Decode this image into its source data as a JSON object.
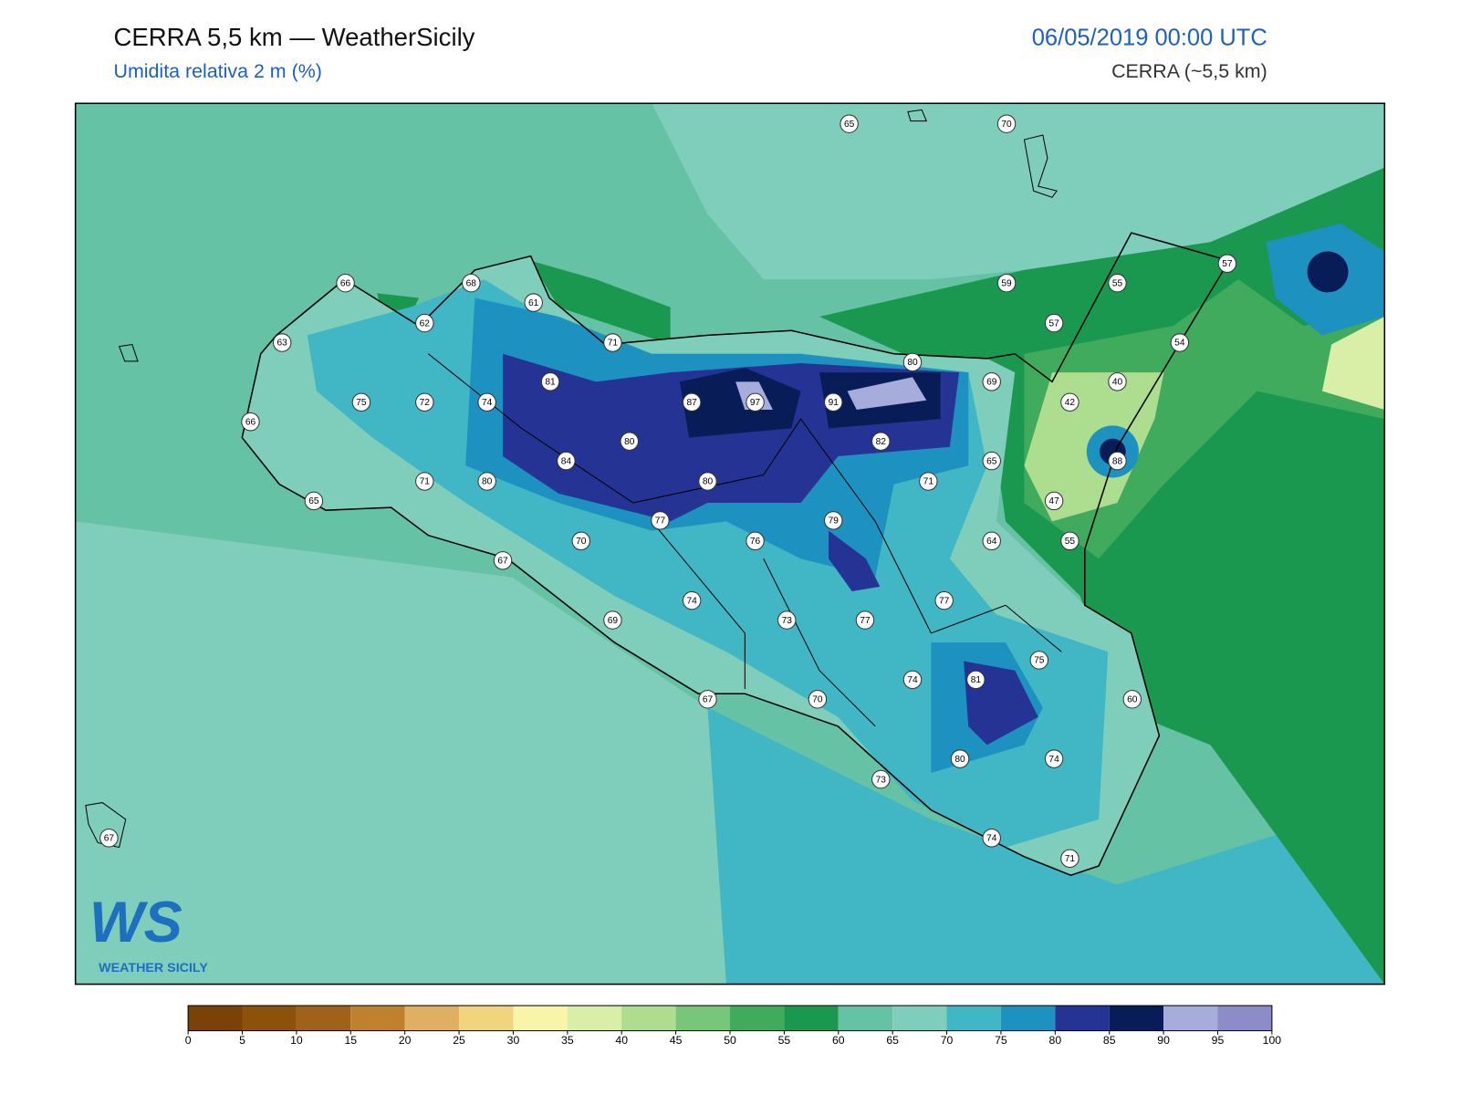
{
  "header": {
    "title": "CERRA 5,5 km — WeatherSicily",
    "subtitle": "Umidita relativa 2 m (%)",
    "datetime": "06/05/2019 00:00 UTC",
    "model": "CERRA (~5,5 km)"
  },
  "stations": [
    66,
    68,
    61,
    62,
    63,
    71,
    65,
    70,
    59,
    55,
    57,
    57,
    54,
    80,
    69,
    40,
    42,
    81,
    75,
    72,
    74,
    87,
    97,
    91,
    66,
    80,
    82,
    84,
    88,
    65,
    71,
    80,
    80,
    71,
    65,
    47,
    77,
    79,
    70,
    76,
    64,
    55,
    67,
    74,
    77,
    69,
    73,
    77,
    75,
    74,
    81,
    60,
    67,
    70,
    80,
    74,
    73,
    67,
    74,
    71
  ],
  "colorbar": {
    "colors": [
      "#7a4206",
      "#8c510a",
      "#a0611a",
      "#bf812d",
      "#dfb063",
      "#f0d47e",
      "#f8f5a8",
      "#d9efa8",
      "#addd8e",
      "#78c679",
      "#41ab5d",
      "#1a9850",
      "#66c2a4",
      "#7fcdbb",
      "#41b6c4",
      "#1d91c0",
      "#253494",
      "#081d58",
      "#a6addb",
      "#8c8cc8"
    ],
    "ticks": [
      0,
      5,
      10,
      15,
      20,
      25,
      30,
      35,
      40,
      45,
      50,
      55,
      60,
      65,
      70,
      75,
      80,
      85,
      90,
      95,
      100
    ]
  },
  "logo": {
    "mark": "WS",
    "text": "WEATHER SICILY"
  }
}
